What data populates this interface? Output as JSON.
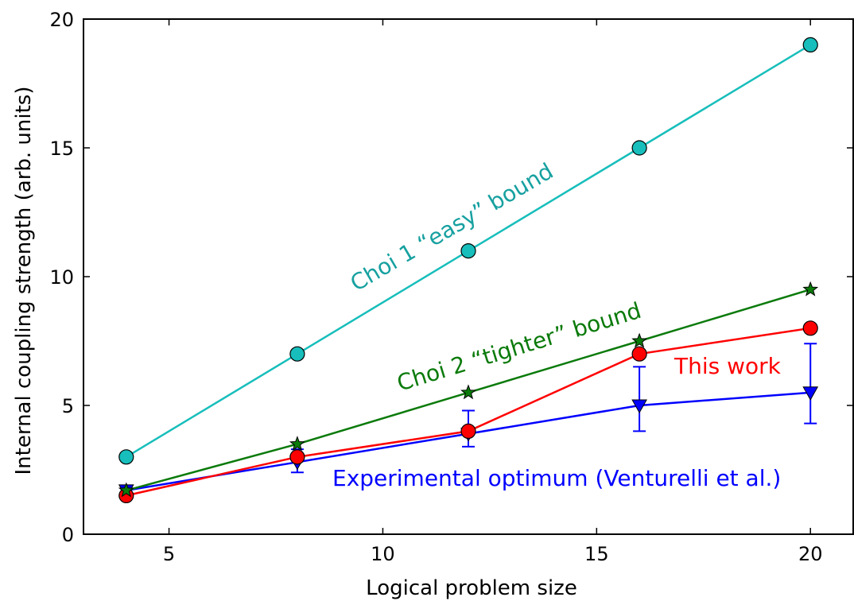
{
  "chart_data": {
    "type": "line",
    "xlabel": "Logical problem size",
    "ylabel": "Internal coupling strength (arb. units)",
    "xlim": [
      3,
      21
    ],
    "ylim": [
      0,
      20
    ],
    "xticks": [
      5,
      10,
      15,
      20
    ],
    "yticks": [
      0,
      5,
      10,
      15,
      20
    ],
    "grid": false,
    "series": [
      {
        "name": "Choi 1 “easy” bound",
        "color": "#17bebb",
        "marker": "circle",
        "x": [
          4,
          8,
          12,
          16,
          20
        ],
        "y": [
          3,
          7,
          11,
          15,
          19
        ]
      },
      {
        "name": "Choi 2 “tighter” bound",
        "color": "#0a7a0a",
        "marker": "star",
        "x": [
          4,
          8,
          12,
          16,
          20
        ],
        "y": [
          1.7,
          3.5,
          5.5,
          7.5,
          9.5
        ]
      },
      {
        "name": "This work",
        "color": "#ff0000",
        "marker": "circle",
        "x": [
          4,
          8,
          12,
          16,
          20
        ],
        "y": [
          1.5,
          3,
          4,
          7,
          8
        ]
      },
      {
        "name": "Experimental optimum (Venturelli et al.)",
        "color": "#0000ff",
        "marker": "triangle-down",
        "x": [
          4,
          8,
          12,
          16,
          20
        ],
        "y": [
          1.7,
          2.8,
          3.9,
          5,
          5.5
        ],
        "err_low": [
          1.7,
          2.4,
          3.4,
          4.0,
          4.3
        ],
        "err_high": [
          1.7,
          3.3,
          4.8,
          6.5,
          7.4
        ]
      }
    ]
  }
}
